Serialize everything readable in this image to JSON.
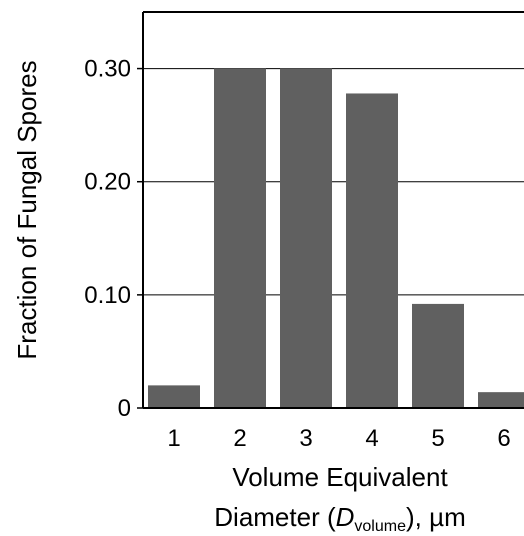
{
  "chart_data": {
    "type": "bar",
    "categories": [
      "1",
      "2",
      "3",
      "4",
      "5",
      "6"
    ],
    "values": [
      0.02,
      0.3,
      0.3,
      0.278,
      0.092,
      0.014
    ],
    "ylabel": "Fraction of Fungal Spores",
    "xlabel": {
      "line1": "Volume Equivalent",
      "prefix": "Diameter (",
      "symbol": "D",
      "subscript": "volume",
      "suffix": "), µm"
    },
    "yticks": [
      0,
      0.1,
      0.2,
      0.3
    ],
    "ytick_labels": [
      "0",
      "0.10",
      "0.20",
      "0.30"
    ],
    "ylim": [
      0,
      0.35
    ],
    "grid": "horizontal",
    "legend": "none",
    "bar_color": "#606060"
  }
}
